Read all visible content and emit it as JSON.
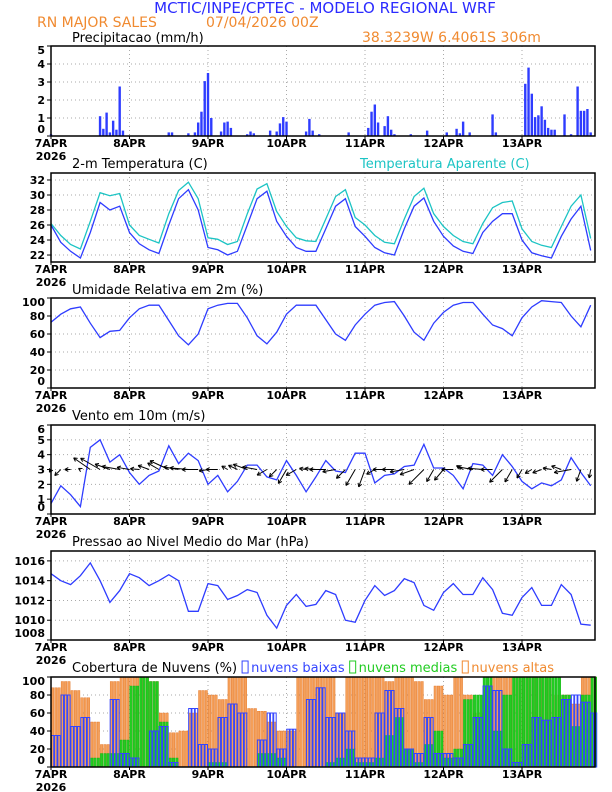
{
  "header": {
    "title": "MCTIC/INPE/CPTEC - MODELO REGIONAL WRF",
    "location": "RN MAJOR SALES",
    "run": "07/04/2026 00Z",
    "coords": "38.3239W 6.4061S 306m"
  },
  "colors": {
    "title": "#2b2bff",
    "orange": "#f08a30",
    "line": "#2e3cff",
    "apparent": "#1cc4c4",
    "baixas": "#3344ff",
    "medias": "#22cc22",
    "altas": "#f5a05a"
  },
  "x_tick_labels": [
    "7APR",
    "8APR",
    "9APR",
    "10APR",
    "11APR",
    "12APR",
    "13APR"
  ],
  "year_label": "2026",
  "chart_data": [
    {
      "id": "precip",
      "type": "bar",
      "title": "Precipitacao (mm/h)",
      "ylim": [
        0,
        5
      ],
      "yticks": [
        0,
        1,
        2,
        3,
        4,
        5
      ],
      "x_unit": "hours since 07APR2026 00Z (hourly)",
      "points": [
        [
          0,
          0.1
        ],
        [
          15,
          1.1
        ],
        [
          16,
          0.4
        ],
        [
          17,
          1.3
        ],
        [
          18,
          0.2
        ],
        [
          19,
          0.85
        ],
        [
          20,
          0.35
        ],
        [
          21,
          2.75
        ],
        [
          22,
          0.3
        ],
        [
          36,
          0.2
        ],
        [
          37,
          0.2
        ],
        [
          42,
          0.15
        ],
        [
          44,
          0.2
        ],
        [
          45,
          0.75
        ],
        [
          46,
          1.35
        ],
        [
          47,
          3.05
        ],
        [
          48,
          3.5
        ],
        [
          49,
          1.0
        ],
        [
          52,
          0.25
        ],
        [
          53,
          0.75
        ],
        [
          54,
          0.8
        ],
        [
          55,
          0.45
        ],
        [
          60,
          0.1
        ],
        [
          61,
          0.25
        ],
        [
          62,
          0.15
        ],
        [
          67,
          0.3
        ],
        [
          69,
          0.25
        ],
        [
          70,
          0.7
        ],
        [
          71,
          1.05
        ],
        [
          72,
          0.8
        ],
        [
          78,
          0.25
        ],
        [
          79,
          0.95
        ],
        [
          80,
          0.3
        ],
        [
          82,
          0.1
        ],
        [
          91,
          0.2
        ],
        [
          97,
          0.45
        ],
        [
          98,
          1.35
        ],
        [
          99,
          1.75
        ],
        [
          100,
          0.75
        ],
        [
          102,
          0.55
        ],
        [
          103,
          1.1
        ],
        [
          104,
          0.35
        ],
        [
          105,
          0.1
        ],
        [
          110,
          0.1
        ],
        [
          115,
          0.3
        ],
        [
          121,
          0.2
        ],
        [
          124,
          0.4
        ],
        [
          125,
          0.15
        ],
        [
          126,
          0.8
        ],
        [
          128,
          0.2
        ],
        [
          135,
          1.2
        ],
        [
          136,
          0.2
        ],
        [
          145,
          2.9
        ],
        [
          146,
          3.8
        ],
        [
          147,
          2.35
        ],
        [
          148,
          1.05
        ],
        [
          149,
          1.15
        ],
        [
          150,
          1.65
        ],
        [
          151,
          0.9
        ],
        [
          152,
          0.45
        ],
        [
          153,
          0.35
        ],
        [
          154,
          0.35
        ],
        [
          157,
          1.2
        ],
        [
          159,
          0.1
        ],
        [
          161,
          2.75
        ],
        [
          162,
          1.4
        ],
        [
          163,
          1.4
        ],
        [
          164,
          1.5
        ],
        [
          165,
          0.2
        ]
      ]
    },
    {
      "id": "temp",
      "type": "line",
      "title": "2-m Temperatura (C)",
      "ylim": [
        21.07,
        32.93
      ],
      "yticks": [
        22,
        24,
        26,
        28,
        30,
        32
      ],
      "x_step_hours": 3,
      "series": [
        {
          "name": "2-m Temperatura (C)",
          "values": [
            26,
            23.7,
            22.5,
            21.6,
            25,
            29,
            28,
            28.5,
            25,
            23.5,
            22.7,
            22.2,
            26,
            29.5,
            30.7,
            28,
            23,
            22.7,
            22,
            22.5,
            26,
            29.5,
            30.5,
            26.5,
            24.5,
            23,
            22.5,
            22.5,
            25.5,
            28.5,
            29.5,
            25.8,
            24.5,
            23,
            22.3,
            22,
            25.5,
            28.5,
            29.6,
            26.5,
            24.5,
            23.2,
            22.5,
            22.2,
            25,
            26.5,
            27.5,
            27.5,
            24,
            22.3,
            21.9,
            21.6,
            24.5,
            26.8,
            28.5,
            22.6
          ]
        },
        {
          "name": "Temperatura Aparente (C)",
          "values": [
            26.2,
            24.6,
            23.4,
            22.8,
            26.5,
            30.3,
            29.9,
            30.2,
            26,
            24.6,
            24.1,
            23.6,
            27.5,
            30.6,
            31.7,
            29.5,
            24.3,
            24.1,
            23.4,
            23.8,
            27.5,
            30.8,
            31.5,
            27.8,
            25.8,
            24.3,
            23.9,
            23.8,
            26.8,
            29.8,
            30.7,
            27,
            26,
            24.6,
            23.7,
            23.5,
            26.8,
            29.8,
            30.9,
            27.5,
            25.8,
            24.6,
            23.8,
            23.5,
            26.2,
            28.3,
            29,
            29.2,
            25.5,
            23.8,
            23.3,
            23,
            25.8,
            28.5,
            30,
            24.2
          ]
        }
      ]
    },
    {
      "id": "rh",
      "type": "line",
      "title": "Umidade Relativa em 2m (%)",
      "ylim": [
        0,
        100
      ],
      "yticks": [
        0,
        20,
        40,
        60,
        80,
        100
      ],
      "x_step_hours": 3,
      "series": [
        {
          "values": [
            73,
            82,
            88,
            90,
            72,
            56,
            63,
            64,
            78,
            88,
            92,
            92,
            75,
            58,
            48,
            60,
            88,
            92,
            94,
            94,
            78,
            58,
            49,
            62,
            82,
            92,
            92,
            92,
            76,
            60,
            53,
            70,
            82,
            92,
            95,
            96,
            80,
            62,
            53,
            72,
            84,
            92,
            95,
            95,
            82,
            70,
            66,
            58,
            78,
            90,
            97,
            96,
            95,
            80,
            68,
            92
          ]
        }
      ]
    },
    {
      "id": "wind",
      "type": "line",
      "title": "Vento em 10m (m/s)",
      "ylim": [
        0,
        6
      ],
      "yticks": [
        0,
        1,
        2,
        3,
        4,
        5,
        6
      ],
      "x_step_hours": 3,
      "series": [
        {
          "values": [
            0.7,
            1.9,
            1.3,
            0.5,
            4.5,
            5.0,
            3.5,
            4.0,
            2.8,
            2.0,
            2.6,
            2.9,
            4.6,
            3.4,
            4.1,
            3.6,
            2.0,
            2.6,
            1.5,
            2.2,
            3.3,
            3.3,
            2.5,
            2.3,
            3.6,
            2.6,
            1.5,
            2.5,
            3.6,
            2.9,
            2.8,
            4.1,
            4.1,
            2.1,
            2.6,
            2.7,
            3.2,
            3.3,
            4.7,
            3.1,
            3.1,
            2.6,
            1.7,
            3.4,
            3.3,
            2.6,
            4.0,
            3.2,
            2.2,
            1.7,
            2.1,
            1.9,
            2.3,
            3.8,
            2.8,
            1.9
          ]
        }
      ],
      "direction_deg": [
        30,
        45,
        90,
        120,
        125,
        120,
        110,
        100,
        100,
        95,
        110,
        120,
        115,
        100,
        95,
        90,
        80,
        90,
        120,
        115,
        110,
        100,
        60,
        45,
        30,
        60,
        100,
        95,
        90,
        80,
        45,
        30,
        20,
        60,
        90,
        90,
        80,
        70,
        45,
        30,
        40,
        90,
        120,
        100,
        95,
        90,
        45,
        30,
        30,
        60,
        70,
        100,
        110,
        80,
        20,
        10
      ]
    },
    {
      "id": "pressure",
      "type": "line",
      "title": "Pressao ao Nivel Medio do Mar (hPa)",
      "ylim": [
        1008,
        1017
      ],
      "yticks": [
        1008,
        1010,
        1012,
        1014,
        1016
      ],
      "x_step_hours": 3,
      "series": [
        {
          "values": [
            1014.7,
            1014.0,
            1013.6,
            1014.5,
            1015.8,
            1014.0,
            1011.8,
            1013.0,
            1014.7,
            1014.3,
            1013.5,
            1014.0,
            1014.6,
            1014.0,
            1010.9,
            1010.9,
            1013.7,
            1013.5,
            1012.1,
            1012.5,
            1013.1,
            1012.8,
            1010.5,
            1009.2,
            1011.5,
            1012.6,
            1011.4,
            1011.6,
            1013.0,
            1012.6,
            1010.0,
            1009.8,
            1012.0,
            1013.5,
            1012.5,
            1013.0,
            1014.2,
            1013.8,
            1011.5,
            1011.0,
            1012.8,
            1013.7,
            1012.6,
            1012.6,
            1014.3,
            1013.1,
            1010.7,
            1010.5,
            1012.3,
            1013.3,
            1011.5,
            1011.5,
            1013.6,
            1012.6,
            1009.6,
            1009.5
          ]
        }
      ]
    },
    {
      "id": "clouds",
      "type": "bar",
      "title": "Cobertura de Nuvens (%)",
      "ylim": [
        0,
        100
      ],
      "yticks": [
        0,
        20,
        40,
        60,
        80,
        100
      ],
      "x_step_hours": 3,
      "series": [
        {
          "name": "nuvens altas",
          "values": [
            88,
            95,
            85,
            77,
            50,
            25,
            95,
            100,
            100,
            100,
            95,
            60,
            38,
            40,
            60,
            85,
            80,
            75,
            100,
            100,
            65,
            62,
            50,
            40,
            40,
            100,
            100,
            100,
            100,
            60,
            100,
            100,
            100,
            100,
            95,
            100,
            100,
            95,
            75,
            90,
            80,
            100,
            80,
            60,
            55,
            100,
            100,
            100,
            100,
            100,
            100,
            80,
            80,
            70,
            100,
            100
          ]
        },
        {
          "name": "nuvens medias",
          "values": [
            0,
            0,
            0,
            0,
            10,
            15,
            15,
            30,
            90,
            100,
            95,
            50,
            10,
            0,
            0,
            0,
            5,
            5,
            0,
            0,
            0,
            15,
            15,
            10,
            0,
            0,
            0,
            0,
            5,
            10,
            20,
            5,
            5,
            10,
            35,
            55,
            20,
            5,
            25,
            40,
            10,
            20,
            75,
            80,
            100,
            40,
            80,
            100,
            100,
            100,
            100,
            100,
            80,
            45,
            80,
            100
          ]
        },
        {
          "name": "nuvens baixas",
          "values": [
            35,
            80,
            45,
            55,
            0,
            0,
            75,
            15,
            10,
            0,
            40,
            45,
            5,
            0,
            65,
            25,
            20,
            55,
            70,
            60,
            0,
            30,
            60,
            20,
            42,
            0,
            75,
            88,
            55,
            60,
            40,
            10,
            10,
            60,
            85,
            65,
            20,
            15,
            55,
            15,
            15,
            10,
            25,
            55,
            90,
            85,
            20,
            5,
            25,
            55,
            52,
            55,
            75,
            80,
            72,
            60
          ]
        }
      ]
    }
  ]
}
